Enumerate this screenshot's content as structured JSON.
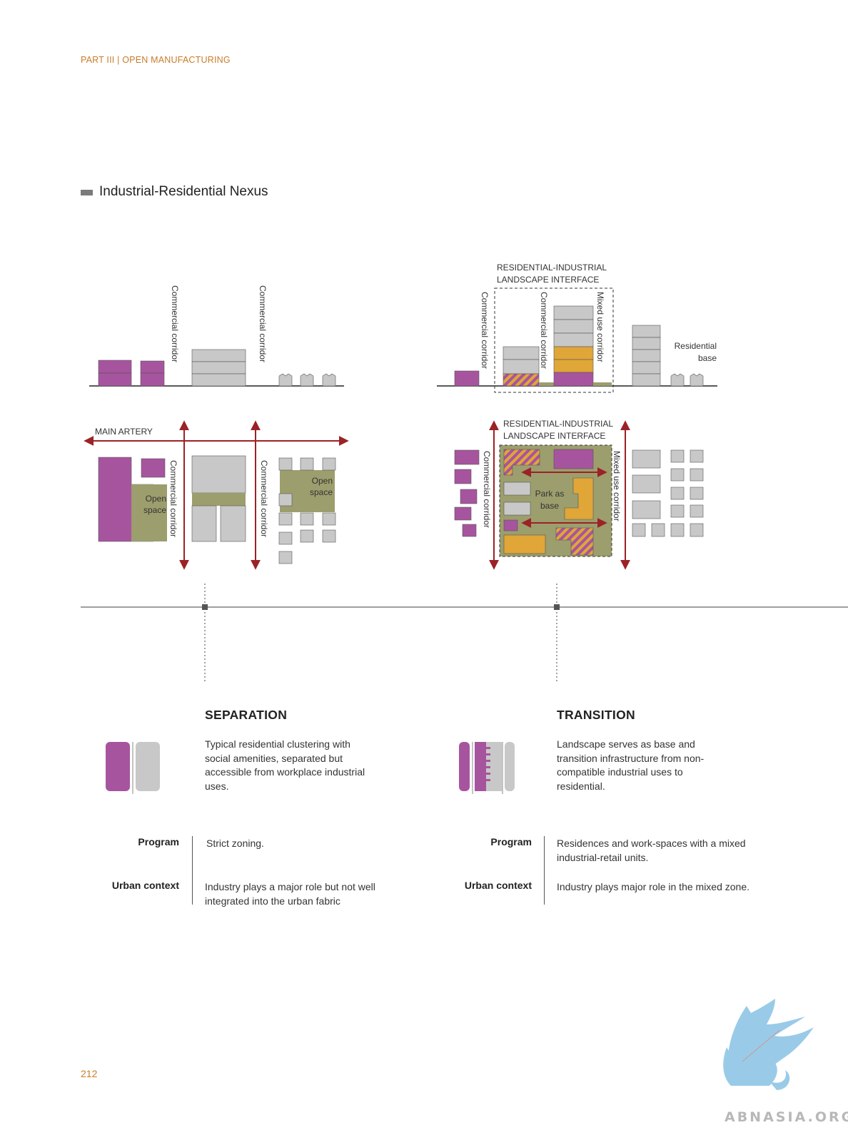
{
  "header": {
    "breadcrumb": "PART III | OPEN MANUFACTURING"
  },
  "section": {
    "title": "Industrial-Residential Nexus"
  },
  "diagram_left": {
    "section_labels": [
      "Commercial corridor",
      "Commercial corridor"
    ],
    "plan_labels": {
      "artery": "MAIN ARTERY",
      "corridor_1": "Commercial corridor",
      "corridor_2": "Commercial corridor",
      "open_space_1": "Open space",
      "open_space_2": "Open space"
    }
  },
  "diagram_right": {
    "interface_label_section": "RESIDENTIAL-INDUSTRIAL LANDSCAPE INTERFACE",
    "section_labels": {
      "corridor_1": "Commercial corridor",
      "corridor_2": "Commercial corridor",
      "mixed": "Mixed use corridor",
      "residential_base": "Residential base"
    },
    "interface_label_plan": "RESIDENTIAL-INDUSTRIAL LANDSCAPE INTERFACE",
    "plan_labels": {
      "corridor": "Commercial corridor",
      "mixed": "Mixed use corridor",
      "park": "Park as base"
    }
  },
  "separation": {
    "title": "SEPARATION",
    "description": "Typical residential clustering with social amenities, separated but accessible from workplace industrial uses.",
    "program_label": "Program",
    "program_value": "Strict zoning.",
    "context_label": "Urban context",
    "context_value": "Industry plays a major role but not well integrated into the urban fabric"
  },
  "transition": {
    "title": "TRANSITION",
    "description": "Landscape serves as base and transition infrastructure from non-compatible industrial uses to residential.",
    "program_label": "Program",
    "program_value": "Residences and work-spaces with a mixed industrial-retail units.",
    "context_label": "Urban context",
    "context_value": "Industry plays major role in the mixed zone."
  },
  "footer": {
    "page_number": "212",
    "watermark": "ABNASIA.ORG"
  },
  "colors": {
    "accent": "#c87d2a",
    "residential": "#a7549f",
    "industrial": "#c8c8c8",
    "mixed": "#e0a637",
    "landscape": "#9c9e6d",
    "arrow": "#9b2226"
  }
}
